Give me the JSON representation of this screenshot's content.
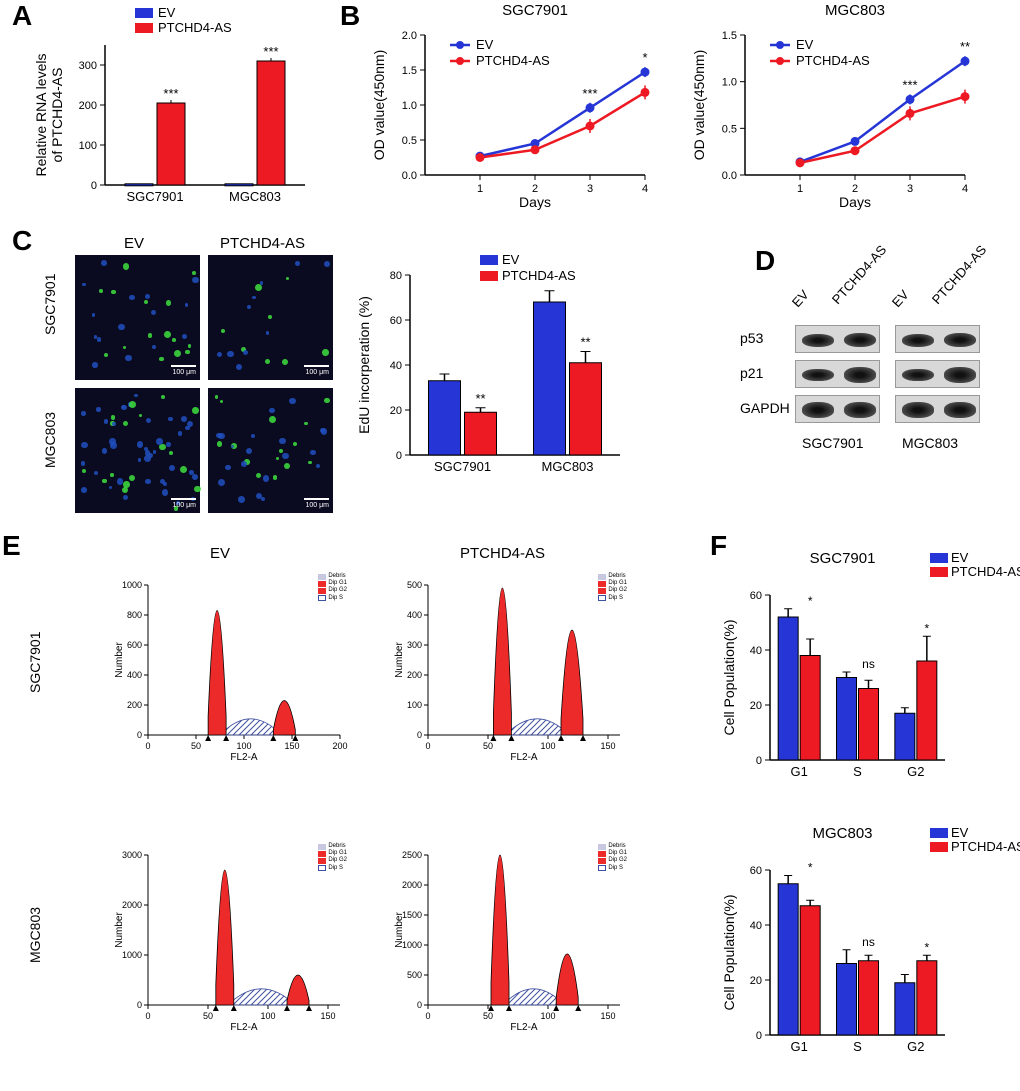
{
  "panels": {
    "A": {
      "letter": "A"
    },
    "B": {
      "letter": "B"
    },
    "C": {
      "letter": "C"
    },
    "D": {
      "letter": "D"
    },
    "E": {
      "letter": "E"
    },
    "F": {
      "letter": "F"
    }
  },
  "conditions": {
    "ev": "EV",
    "ptchd4as": "PTCHD4-AS"
  },
  "colors": {
    "ev": "#2635d5",
    "ptchd4as": "#ed1923",
    "facs_fill": "#ec2a2a",
    "facs_hatch": "#98a0c4",
    "bg": "#ffffff"
  },
  "panelA": {
    "type": "bar",
    "ylabel": "Relative RNA levels\nof PTCHD4-AS",
    "categories": [
      "SGC7901",
      "MGC803"
    ],
    "ylim": [
      0,
      350
    ],
    "yticks": [
      0,
      100,
      200,
      300
    ],
    "values_ev": [
      3,
      3
    ],
    "values_pt": [
      205,
      310
    ],
    "sig": [
      "***",
      "***"
    ],
    "bar_width": 0.35,
    "label_fontsize": 13
  },
  "panelB": {
    "type": "line",
    "charts": [
      {
        "title": "SGC7901",
        "xlabel": "Days",
        "ylabel": "OD value(450nm)",
        "xlim": [
          0,
          4.2
        ],
        "ylim": [
          0,
          2.0
        ],
        "xticks": [
          1,
          2,
          3,
          4
        ],
        "yticks": [
          0.0,
          0.5,
          1.0,
          1.5,
          2.0
        ],
        "ev_points": [
          [
            1,
            0.27
          ],
          [
            2,
            0.45
          ],
          [
            3,
            0.96
          ],
          [
            4,
            1.47
          ]
        ],
        "pt_points": [
          [
            1,
            0.25
          ],
          [
            2,
            0.36
          ],
          [
            3,
            0.7
          ],
          [
            4,
            1.18
          ]
        ],
        "sig": [
          null,
          null,
          "***",
          "*"
        ]
      },
      {
        "title": "MGC803",
        "xlabel": "Days",
        "ylabel": "OD value(450nm)",
        "xlim": [
          0,
          4.2
        ],
        "ylim": [
          0,
          1.5
        ],
        "xticks": [
          1,
          2,
          3,
          4
        ],
        "yticks": [
          0.0,
          0.5,
          1.0,
          1.5
        ],
        "ev_points": [
          [
            1,
            0.14
          ],
          [
            2,
            0.36
          ],
          [
            3,
            0.81
          ],
          [
            4,
            1.22
          ]
        ],
        "pt_points": [
          [
            1,
            0.13
          ],
          [
            2,
            0.26
          ],
          [
            3,
            0.66
          ],
          [
            4,
            0.84
          ]
        ],
        "sig": [
          null,
          null,
          "***",
          "**"
        ]
      }
    ]
  },
  "panelC": {
    "cell_lines": [
      "SGC7901",
      "MGC803"
    ],
    "scale_label": "100 μm",
    "bar_chart": {
      "ylabel": "EdU incorperation (%)",
      "categories": [
        "SGC7901",
        "MGC803"
      ],
      "ylim": [
        0,
        80
      ],
      "yticks": [
        0,
        20,
        40,
        60,
        80
      ],
      "values_ev": [
        33,
        68
      ],
      "errors_ev": [
        3,
        5
      ],
      "values_pt": [
        19,
        41
      ],
      "errors_pt": [
        2,
        5
      ],
      "sig": [
        "**",
        "**"
      ]
    }
  },
  "panelD": {
    "proteins": [
      "p53",
      "p21",
      "GAPDH"
    ],
    "cell_lines": [
      "SGC7901",
      "MGC803"
    ]
  },
  "panelE": {
    "xlabel": "FL2-A",
    "ylabel": "Number",
    "cell_lines": [
      "SGC7901",
      "MGC803"
    ],
    "conditions": [
      "EV",
      "PTCHD4-AS"
    ],
    "facs_legend": [
      "Debris",
      "Dip G1",
      "Dip G2",
      "Dip S"
    ],
    "charts": [
      {
        "yticks": [
          0,
          200,
          400,
          600,
          800,
          1000
        ],
        "xticks": [
          0,
          50,
          100,
          150,
          200
        ],
        "g1_x": 72,
        "g1_h": 830,
        "g2_x": 142,
        "g2_h": 230,
        "xmax": 200
      },
      {
        "yticks": [
          0,
          100,
          200,
          300,
          400,
          500
        ],
        "xticks": [
          0,
          50,
          100,
          150
        ],
        "g1_x": 62,
        "g1_h": 490,
        "g2_x": 120,
        "g2_h": 350,
        "xmax": 160
      },
      {
        "yticks": [
          0,
          1000,
          2000,
          3000
        ],
        "xticks": [
          0,
          50,
          100,
          150
        ],
        "g1_x": 64,
        "g1_h": 2700,
        "g2_x": 125,
        "g2_h": 600,
        "xmax": 160
      },
      {
        "yticks": [
          0,
          500,
          1000,
          1500,
          2000,
          2500
        ],
        "xticks": [
          0,
          50,
          100,
          150
        ],
        "g1_x": 60,
        "g1_h": 2500,
        "g2_x": 116,
        "g2_h": 850,
        "xmax": 160
      }
    ]
  },
  "panelF": {
    "ylabel": "Cell Population(%)",
    "categories": [
      "G1",
      "S",
      "G2"
    ],
    "charts": [
      {
        "title": "SGC7901",
        "ylim": [
          0,
          60
        ],
        "yticks": [
          0,
          20,
          40,
          60
        ],
        "values_ev": [
          52,
          30,
          17
        ],
        "errors_ev": [
          3,
          2,
          2
        ],
        "values_pt": [
          38,
          26,
          36
        ],
        "errors_pt": [
          6,
          3,
          9
        ],
        "sig": [
          "*",
          "ns",
          "*"
        ]
      },
      {
        "title": "MGC803",
        "ylim": [
          0,
          60
        ],
        "yticks": [
          0,
          20,
          40,
          60
        ],
        "values_ev": [
          55,
          26,
          19
        ],
        "errors_ev": [
          3,
          5,
          3
        ],
        "values_pt": [
          47,
          27,
          27
        ],
        "errors_pt": [
          2,
          2,
          2
        ],
        "sig": [
          "*",
          "ns",
          "*"
        ]
      }
    ]
  }
}
